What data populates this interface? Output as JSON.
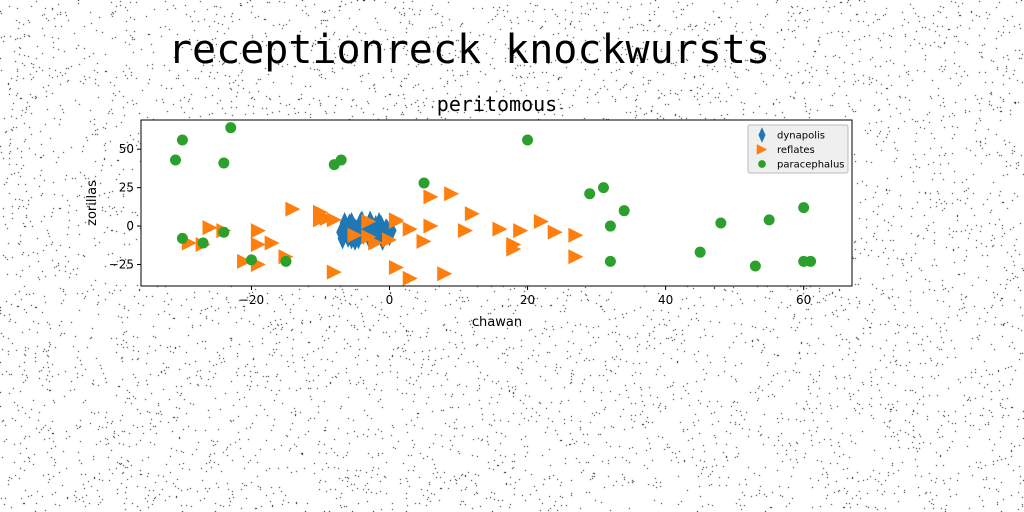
{
  "chart_data": {
    "type": "scatter",
    "suptitle": "receptionreck knockwursts",
    "title": "peritomous",
    "xlabel": "chawan",
    "ylabel": "zorillas",
    "xlim": [
      -36,
      67
    ],
    "ylim": [
      -39,
      69
    ],
    "xticks": [
      -20,
      0,
      20,
      40,
      60
    ],
    "yticks": [
      -25,
      0,
      25,
      50
    ],
    "grid": false,
    "legend_position": "top-right",
    "series": [
      {
        "name": "dynapolis",
        "marker": "thin-diamond",
        "color": "#1f77b4",
        "x": [
          -7,
          -6.5,
          -6,
          -5.5,
          -5,
          -4.5,
          -4,
          -3.5,
          -3,
          -2.5,
          -2,
          -1.5,
          -1,
          -0.5,
          0,
          -6.8,
          -6.2,
          -5.8,
          -5.2,
          -4.8,
          -4.2,
          -3.8,
          -3.2,
          -2.8,
          -2.2,
          -1.8,
          -1.2,
          -0.8,
          -0.3,
          -6.5,
          -5.5,
          -4.5,
          -3.5,
          -2.5,
          -1.5,
          -0.5,
          -5,
          -3,
          -1,
          0.3,
          -6,
          -4,
          -2
        ],
        "y": [
          -4,
          0,
          -6,
          2,
          -2,
          -8,
          1,
          -3,
          -7,
          0,
          -5,
          -1,
          -4,
          -2,
          -6,
          -8,
          -2,
          1,
          -6,
          -3,
          2,
          -5,
          -1,
          3,
          -7,
          -2,
          0,
          -5,
          -3,
          2,
          -8,
          -5,
          -2,
          -8,
          2,
          -4,
          -9,
          -7,
          -9,
          -3,
          -7,
          3,
          0
        ]
      },
      {
        "name": "reflates",
        "marker": "triangle-right",
        "color": "#ff7f0e",
        "x": [
          -29,
          -27,
          -26,
          -24,
          -21,
          -19,
          -19,
          -17,
          -19,
          -15,
          -14,
          -10,
          -9,
          -10,
          -8,
          -8,
          -5,
          -3,
          -3,
          -2,
          0,
          1,
          1,
          1,
          3,
          3,
          5,
          6,
          6,
          8,
          9,
          11,
          12,
          16,
          18,
          18,
          19,
          22,
          24,
          27,
          27
        ],
        "y": [
          -11,
          -12,
          -1,
          -3,
          -23,
          -25,
          -3,
          -11,
          -12,
          -20,
          11,
          9,
          5,
          4,
          -30,
          4,
          -6,
          -7,
          3,
          -11,
          -9,
          4,
          -27,
          3,
          -34,
          -2,
          -10,
          19,
          0,
          -31,
          21,
          -3,
          8,
          -2,
          -12,
          -15,
          -3,
          3,
          -4,
          -6,
          -20
        ]
      },
      {
        "name": "paracephalus",
        "marker": "circle",
        "color": "#2ca02c",
        "x": [
          -31,
          -30,
          -30,
          -27,
          -24,
          -24,
          -23,
          -20,
          -15,
          -8,
          -7,
          5,
          20,
          29,
          31,
          32,
          32,
          34,
          45,
          48,
          53,
          55,
          60,
          60,
          61
        ],
        "y": [
          43,
          56,
          -8,
          -11,
          41,
          -4,
          64,
          -22,
          -23,
          40,
          43,
          28,
          56,
          21,
          25,
          0,
          -23,
          10,
          -17,
          2,
          -26,
          4,
          12,
          -23,
          -23
        ]
      }
    ]
  }
}
